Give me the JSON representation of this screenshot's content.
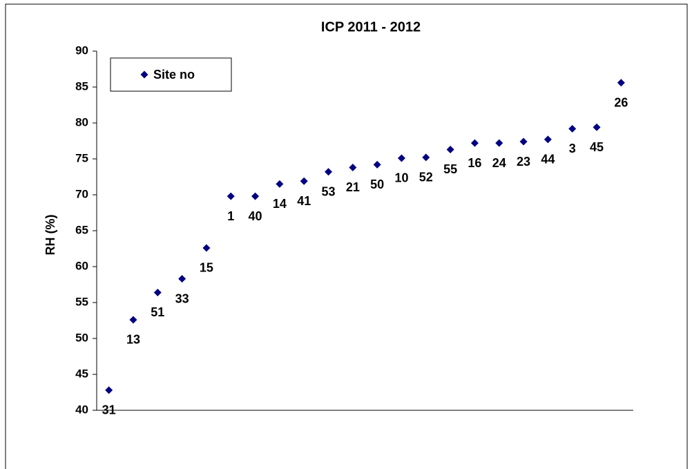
{
  "chart_data": {
    "type": "scatter",
    "title": "ICP 2011 - 2012",
    "y_label": "RH (%)",
    "categories": [
      "31",
      "13",
      "51",
      "33",
      "15",
      "1",
      "40",
      "14",
      "41",
      "53",
      "21",
      "50",
      "10",
      "52",
      "55",
      "16",
      "24",
      "23",
      "44",
      "3",
      "45",
      "26"
    ],
    "series": [
      {
        "name": "Site no",
        "color": "#000080",
        "values": [
          42.8,
          52.6,
          56.4,
          58.3,
          62.6,
          69.8,
          69.8,
          71.5,
          71.9,
          73.2,
          73.8,
          74.2,
          75.1,
          75.2,
          76.3,
          77.2,
          77.2,
          77.4,
          77.7,
          79.2,
          79.4,
          85.6
        ]
      }
    ],
    "ylim": [
      40,
      90
    ],
    "yticks": [
      40,
      45,
      50,
      55,
      60,
      65,
      70,
      75,
      80,
      85,
      90
    ],
    "grid": false,
    "legend": "upper left"
  }
}
